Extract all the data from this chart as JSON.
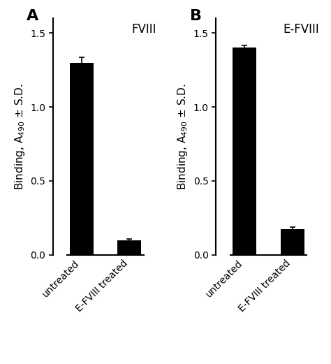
{
  "panel_A": {
    "label": "A",
    "title": "FVIII",
    "categories": [
      "untreated",
      "E-FVIII treated"
    ],
    "values": [
      1.3,
      0.1
    ],
    "errors": [
      0.035,
      0.008
    ],
    "bar_color": "#000000",
    "bar_width": 0.5
  },
  "panel_B": {
    "label": "B",
    "title": "E-FVIII",
    "categories": [
      "untreated",
      "E-FVIII treated"
    ],
    "values": [
      1.4,
      0.175
    ],
    "errors": [
      0.018,
      0.012
    ],
    "bar_color": "#000000",
    "bar_width": 0.5
  },
  "ylabel": "Binding, A$_{490}$ ± S.D.",
  "ylim": [
    0,
    1.6
  ],
  "yticks": [
    0.0,
    0.5,
    1.0,
    1.5
  ],
  "background_color": "#ffffff",
  "tick_fontsize": 10,
  "label_fontsize": 11,
  "panel_label_fontsize": 16,
  "title_fontsize": 12,
  "xticklabel_rotation": 45,
  "xticklabel_ha": "right"
}
